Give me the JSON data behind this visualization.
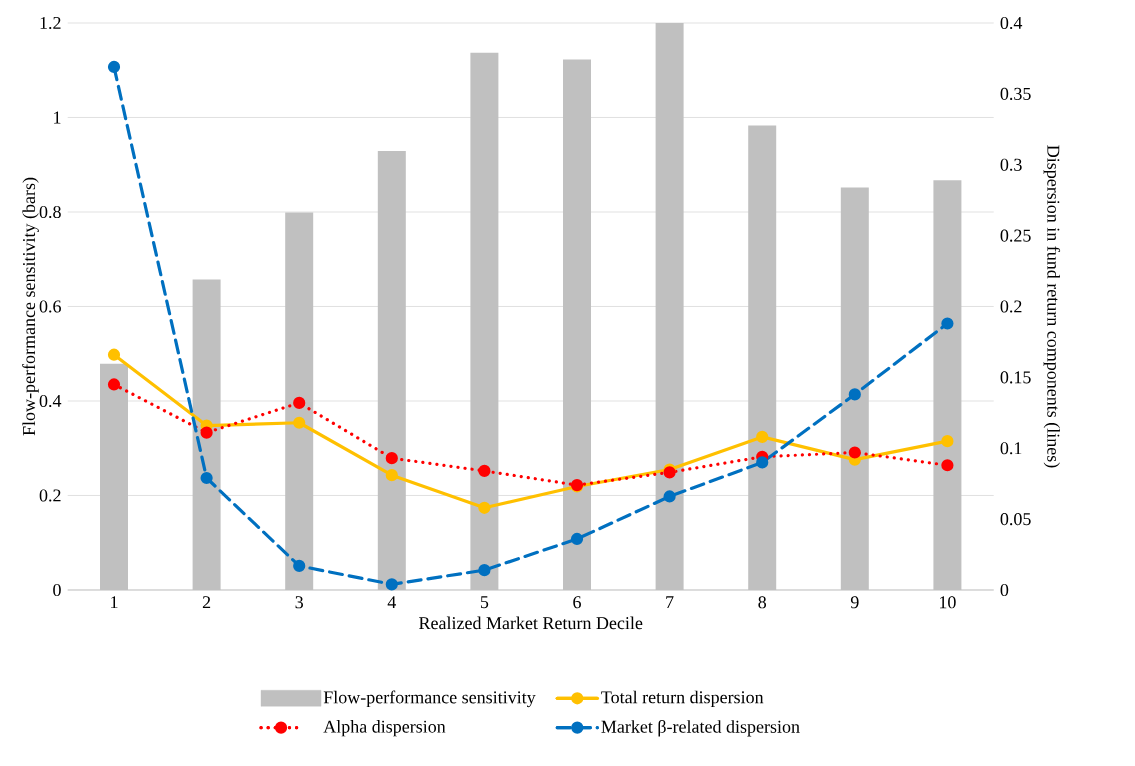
{
  "chart_data": {
    "type": "bar",
    "xlabel": "Realized Market Return Decile",
    "ylabel": "Flow-performance sensitivity  (bars)",
    "y2label": "Dispersion in fund return components (lines)",
    "categories": [
      "1",
      "2",
      "3",
      "4",
      "5",
      "6",
      "7",
      "8",
      "9",
      "10"
    ],
    "series": [
      {
        "name": "Flow-performance sensitivity",
        "color": "#c0c0c0",
        "values": [
          0.479,
          0.657,
          0.799,
          0.929,
          1.137,
          1.123,
          1.2,
          0.983,
          0.852,
          0.867
        ]
      },
      {
        "name": "Total return dispersion",
        "type": "line",
        "axis": "y2",
        "color": "#ffc000",
        "line_style": "solid",
        "values": [
          0.166,
          0.116,
          0.118,
          0.081,
          0.058,
          0.073,
          0.085,
          0.108,
          0.092,
          0.105
        ]
      },
      {
        "name": "Alpha dispersion",
        "type": "line",
        "axis": "y2",
        "color": "#ff0000",
        "line_style": "dotted",
        "values": [
          0.145,
          0.111,
          0.132,
          0.093,
          0.084,
          0.074,
          0.083,
          0.094,
          0.097,
          0.088
        ]
      },
      {
        "name": "Market β-related dispersion",
        "type": "line",
        "axis": "y2",
        "color": "#0070c0",
        "line_style": "dashed",
        "values": [
          0.369,
          0.079,
          0.017,
          0.004,
          0.014,
          0.036,
          0.066,
          0.09,
          0.138,
          0.188
        ]
      }
    ],
    "ylim": [
      0,
      1.2
    ],
    "yticks": [
      0,
      0.2,
      0.4,
      0.6,
      0.8,
      1,
      1.2
    ],
    "y2lim": [
      0,
      0.4
    ],
    "y2ticks": [
      0,
      0.05,
      0.1,
      0.15,
      0.2,
      0.25,
      0.3,
      0.35,
      0.4
    ],
    "grid": "y",
    "legend": "bottom",
    "marker": "circle"
  }
}
